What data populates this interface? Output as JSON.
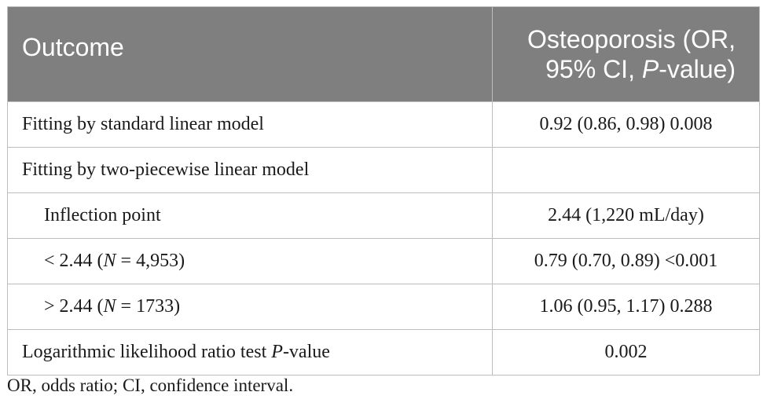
{
  "header": {
    "col1": "Outcome",
    "col2_line1": "Osteoporosis (OR,",
    "col2_line2_pre": "95% CI, ",
    "col2_line2_italic": "P",
    "col2_line2_post": "-value)"
  },
  "rows": [
    {
      "outcome": "Fitting by standard linear model",
      "value": "0.92 (0.86, 0.98) 0.008"
    },
    {
      "outcome": "Fitting by two-piecewise linear model",
      "value": ""
    },
    {
      "outcome": "Inflection point",
      "value": "2.44 (1,220 mL/day)"
    },
    {
      "outcome_pre": "< 2.44 (",
      "outcome_italic": "N",
      "outcome_post": " = 4,953)",
      "value": "0.79 (0.70, 0.89) <0.001"
    },
    {
      "outcome_pre": "> 2.44 (",
      "outcome_italic": "N",
      "outcome_post": " = 1733)",
      "value": "1.06 (0.95, 1.17) 0.288"
    },
    {
      "outcome_pre": "Logarithmic likelihood ratio test ",
      "outcome_italic": "P",
      "outcome_post": "-value",
      "value": "0.002"
    }
  ],
  "footnote": "OR, odds ratio; CI, confidence interval."
}
